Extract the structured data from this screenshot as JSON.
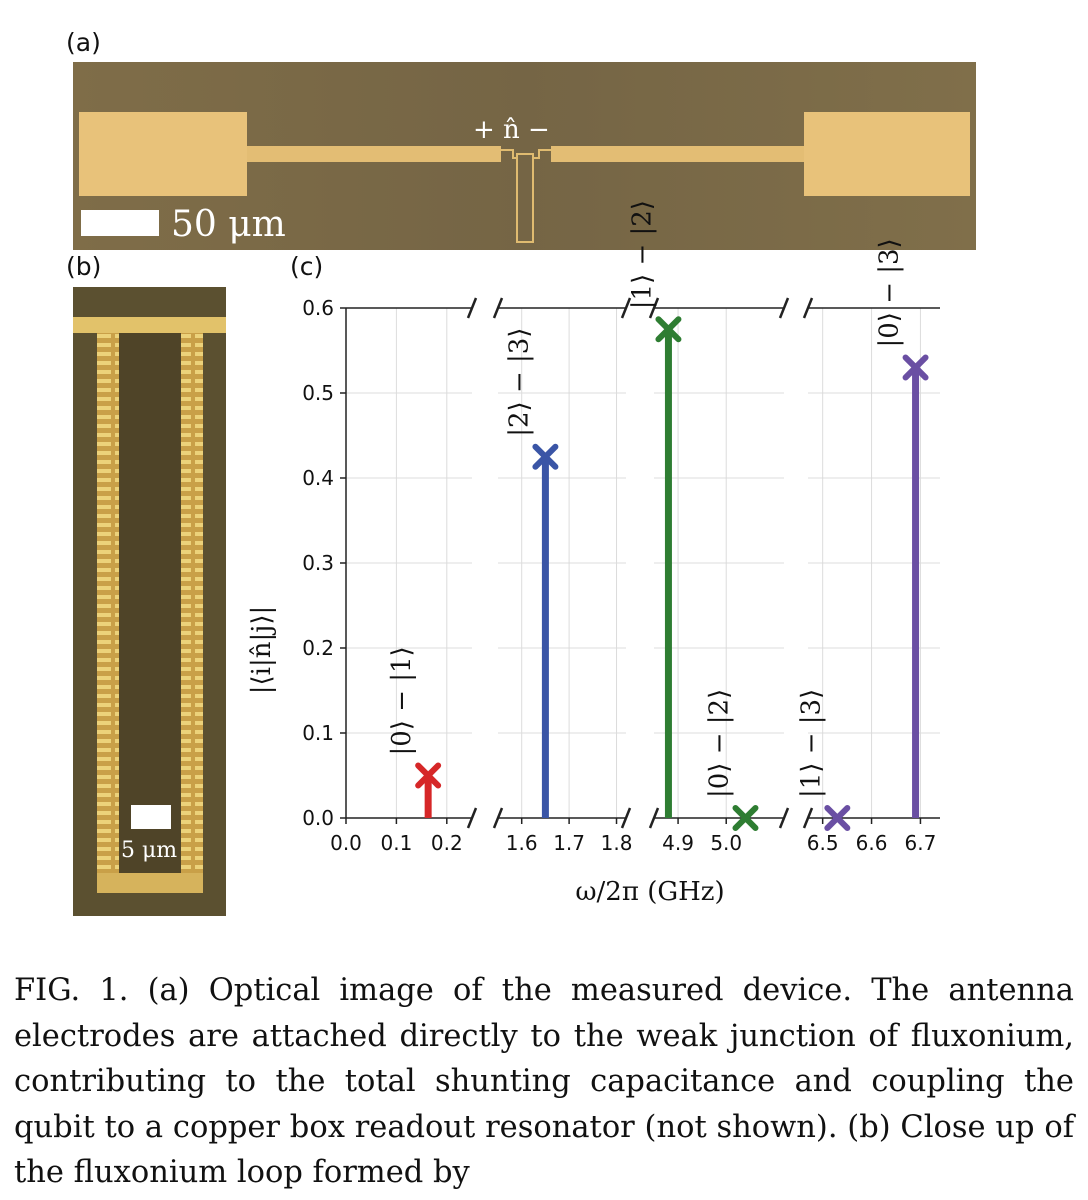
{
  "figure": {
    "panel_labels": {
      "a": "(a)",
      "b": "(b)",
      "c": "(c)"
    },
    "panel_a": {
      "operator_label": "+ n̂ −",
      "scalebar_label": "50 μm",
      "colors": {
        "background": "#7b6a45",
        "metal": "#e6bf75"
      }
    },
    "panel_b": {
      "scalebar_label": "5 μm",
      "colors": {
        "background": "#5e5230",
        "metal": "#d9b45a"
      }
    },
    "caption": "FIG. 1.  (a) Optical image of the measured device.  The antenna electrodes are attached directly to the weak junction of fluxonium, contributing to the total shunting capacitance and coupling the qubit to a copper box readout resonator (not shown).  (b) Close up of the fluxonium loop formed by"
  },
  "chart_data": {
    "type": "scatter",
    "style": "stem",
    "xlabel": "ω/2π (GHz)",
    "ylabel": "|⟨i|n̂|j⟩|",
    "ylim": [
      0,
      0.6
    ],
    "yticks": [
      "0.0",
      "0.1",
      "0.2",
      "0.3",
      "0.4",
      "0.5",
      "0.6"
    ],
    "grid": true,
    "broken_x_axis": true,
    "segments": [
      {
        "xlim": [
          0.0,
          0.25
        ],
        "ticks": [
          0.0,
          0.1,
          0.2
        ],
        "tick_labels": [
          "0.0",
          "0.1",
          "0.2"
        ]
      },
      {
        "xlim": [
          1.55,
          1.82
        ],
        "ticks": [
          1.6,
          1.7,
          1.8
        ],
        "tick_labels": [
          "1.6",
          "1.7",
          "1.8"
        ]
      },
      {
        "xlim": [
          4.85,
          5.12
        ],
        "ticks": [
          4.9,
          5.0
        ],
        "tick_labels": [
          "4.9",
          "5.0"
        ]
      },
      {
        "xlim": [
          6.47,
          6.74
        ],
        "ticks": [
          6.5,
          6.6,
          6.7
        ],
        "tick_labels": [
          "6.5",
          "6.6",
          "6.7"
        ]
      }
    ],
    "series": [
      {
        "segment": 0,
        "x": 0.163,
        "y": 0.05,
        "label": "|0⟩ − |1⟩",
        "color": "#d62728",
        "stem": true
      },
      {
        "segment": 1,
        "x": 1.65,
        "y": 0.425,
        "label": "|2⟩ − |3⟩",
        "color": "#3a55a6",
        "stem": true
      },
      {
        "segment": 2,
        "x": 4.88,
        "y": 0.575,
        "label": "|1⟩ − |2⟩",
        "color": "#2e7d32",
        "stem": true
      },
      {
        "segment": 2,
        "x": 5.04,
        "y": 0.0,
        "label": "|0⟩ − |2⟩",
        "color": "#2e7d32",
        "stem": false
      },
      {
        "segment": 3,
        "x": 6.53,
        "y": 0.0,
        "label": "|1⟩ − |3⟩",
        "color": "#6a4fa3",
        "stem": false
      },
      {
        "segment": 3,
        "x": 6.69,
        "y": 0.53,
        "label": "|0⟩ − |3⟩",
        "color": "#6a4fa3",
        "stem": true
      }
    ]
  }
}
